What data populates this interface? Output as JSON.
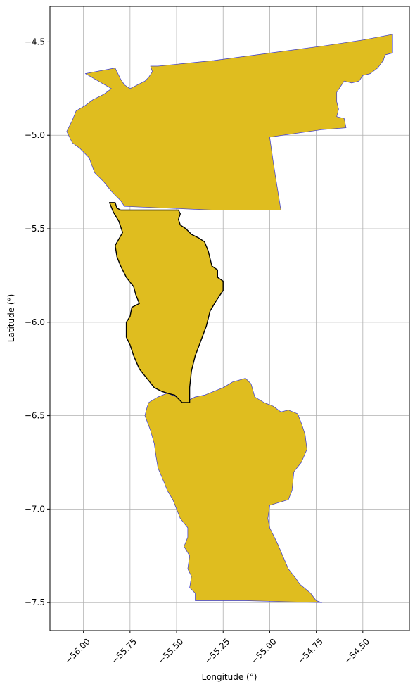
{
  "chart_data": {
    "type": "map",
    "title": "",
    "xlabel": "Longitude (°)",
    "ylabel": "Latitude (°)",
    "xlim": [
      -56.18,
      -54.25
    ],
    "ylim": [
      -7.65,
      -4.31
    ],
    "grid": true,
    "xticks": [
      -56.0,
      -55.75,
      -55.5,
      -55.25,
      -55.0,
      -54.75,
      -54.5
    ],
    "xtick_labels": [
      "−56.00",
      "−55.75",
      "−55.50",
      "−55.25",
      "−55.00",
      "−54.75",
      "−54.50"
    ],
    "yticks": [
      -4.5,
      -5.0,
      -5.5,
      -6.0,
      -6.5,
      -7.0,
      -7.5
    ],
    "ytick_labels": [
      "−4.5",
      "−5.0",
      "−5.5",
      "−6.0",
      "−6.5",
      "−7.0",
      "−7.5"
    ],
    "colors": {
      "fill": "#DFBD1F",
      "edge_blue": "#3B3BD0",
      "edge_highlight": "#000000",
      "grid": "#B0B0B0"
    },
    "regions": [
      {
        "id": "north",
        "highlight": false,
        "coords": [
          [
            -56.09,
            -4.98
          ],
          [
            -56.06,
            -4.92
          ],
          [
            -56.04,
            -4.87
          ],
          [
            -55.99,
            -4.84
          ],
          [
            -55.95,
            -4.81
          ],
          [
            -55.89,
            -4.78
          ],
          [
            -55.85,
            -4.75
          ],
          [
            -55.99,
            -4.67
          ],
          [
            -55.83,
            -4.64
          ],
          [
            -55.8,
            -4.7
          ],
          [
            -55.78,
            -4.73
          ],
          [
            -55.75,
            -4.75
          ],
          [
            -55.67,
            -4.71
          ],
          [
            -55.65,
            -4.69
          ],
          [
            -55.63,
            -4.66
          ],
          [
            -55.64,
            -4.63
          ],
          [
            -55.6,
            -4.63
          ],
          [
            -55.3,
            -4.6
          ],
          [
            -55.0,
            -4.56
          ],
          [
            -54.7,
            -4.52
          ],
          [
            -54.5,
            -4.49
          ],
          [
            -54.34,
            -4.46
          ],
          [
            -54.34,
            -4.56
          ],
          [
            -54.38,
            -4.57
          ],
          [
            -54.39,
            -4.6
          ],
          [
            -54.42,
            -4.64
          ],
          [
            -54.46,
            -4.67
          ],
          [
            -54.5,
            -4.68
          ],
          [
            -54.52,
            -4.71
          ],
          [
            -54.56,
            -4.72
          ],
          [
            -54.6,
            -4.71
          ],
          [
            -54.62,
            -4.74
          ],
          [
            -54.64,
            -4.77
          ],
          [
            -54.64,
            -4.82
          ],
          [
            -54.63,
            -4.86
          ],
          [
            -54.64,
            -4.9
          ],
          [
            -54.6,
            -4.91
          ],
          [
            -54.59,
            -4.96
          ],
          [
            -54.72,
            -4.97
          ],
          [
            -55.0,
            -5.01
          ],
          [
            -54.98,
            -5.15
          ],
          [
            -54.94,
            -5.4
          ],
          [
            -55.3,
            -5.4
          ],
          [
            -55.78,
            -5.38
          ],
          [
            -55.8,
            -5.35
          ],
          [
            -55.85,
            -5.3
          ],
          [
            -55.89,
            -5.25
          ],
          [
            -55.94,
            -5.2
          ],
          [
            -55.97,
            -5.12
          ],
          [
            -56.02,
            -5.07
          ],
          [
            -56.06,
            -5.04
          ]
        ]
      },
      {
        "id": "middle",
        "highlight": true,
        "coords": [
          [
            -55.86,
            -5.36
          ],
          [
            -55.83,
            -5.36
          ],
          [
            -55.82,
            -5.39
          ],
          [
            -55.8,
            -5.4
          ],
          [
            -55.49,
            -5.4
          ],
          [
            -55.48,
            -5.42
          ],
          [
            -55.49,
            -5.45
          ],
          [
            -55.48,
            -5.48
          ],
          [
            -55.45,
            -5.5
          ],
          [
            -55.42,
            -5.53
          ],
          [
            -55.38,
            -5.55
          ],
          [
            -55.35,
            -5.57
          ],
          [
            -55.33,
            -5.62
          ],
          [
            -55.32,
            -5.66
          ],
          [
            -55.31,
            -5.7
          ],
          [
            -55.28,
            -5.72
          ],
          [
            -55.28,
            -5.76
          ],
          [
            -55.25,
            -5.78
          ],
          [
            -55.25,
            -5.83
          ],
          [
            -55.27,
            -5.86
          ],
          [
            -55.29,
            -5.89
          ],
          [
            -55.32,
            -5.94
          ],
          [
            -55.34,
            -6.02
          ],
          [
            -55.37,
            -6.1
          ],
          [
            -55.4,
            -6.18
          ],
          [
            -55.42,
            -6.26
          ],
          [
            -55.43,
            -6.35
          ],
          [
            -55.43,
            -6.43
          ],
          [
            -55.47,
            -6.43
          ],
          [
            -55.51,
            -6.39
          ],
          [
            -55.55,
            -6.38
          ],
          [
            -55.58,
            -6.37
          ],
          [
            -55.62,
            -6.35
          ],
          [
            -55.66,
            -6.3
          ],
          [
            -55.7,
            -6.25
          ],
          [
            -55.73,
            -6.18
          ],
          [
            -55.75,
            -6.12
          ],
          [
            -55.77,
            -6.08
          ],
          [
            -55.77,
            -6.0
          ],
          [
            -55.75,
            -5.97
          ],
          [
            -55.74,
            -5.92
          ],
          [
            -55.7,
            -5.9
          ],
          [
            -55.72,
            -5.85
          ],
          [
            -55.73,
            -5.81
          ],
          [
            -55.77,
            -5.76
          ],
          [
            -55.8,
            -5.7
          ],
          [
            -55.82,
            -5.65
          ],
          [
            -55.83,
            -5.59
          ],
          [
            -55.79,
            -5.52
          ],
          [
            -55.81,
            -5.46
          ],
          [
            -55.84,
            -5.41
          ]
        ]
      },
      {
        "id": "south",
        "highlight": false,
        "coords": [
          [
            -55.65,
            -6.43
          ],
          [
            -55.6,
            -6.4
          ],
          [
            -55.55,
            -6.38
          ],
          [
            -55.5,
            -6.4
          ],
          [
            -55.46,
            -6.43
          ],
          [
            -55.4,
            -6.4
          ],
          [
            -55.35,
            -6.39
          ],
          [
            -55.25,
            -6.35
          ],
          [
            -55.2,
            -6.32
          ],
          [
            -55.13,
            -6.3
          ],
          [
            -55.1,
            -6.33
          ],
          [
            -55.08,
            -6.4
          ],
          [
            -55.03,
            -6.43
          ],
          [
            -54.98,
            -6.45
          ],
          [
            -54.94,
            -6.48
          ],
          [
            -54.9,
            -6.47
          ],
          [
            -54.85,
            -6.49
          ],
          [
            -54.83,
            -6.54
          ],
          [
            -54.81,
            -6.6
          ],
          [
            -54.8,
            -6.68
          ],
          [
            -54.83,
            -6.75
          ],
          [
            -54.87,
            -6.8
          ],
          [
            -54.88,
            -6.9
          ],
          [
            -54.9,
            -6.95
          ],
          [
            -55.0,
            -6.98
          ],
          [
            -55.01,
            -7.05
          ],
          [
            -55.0,
            -7.1
          ],
          [
            -54.96,
            -7.18
          ],
          [
            -54.93,
            -7.25
          ],
          [
            -54.9,
            -7.32
          ],
          [
            -54.86,
            -7.37
          ],
          [
            -54.84,
            -7.4
          ],
          [
            -54.78,
            -7.45
          ],
          [
            -54.75,
            -7.49
          ],
          [
            -54.72,
            -7.5
          ],
          [
            -55.13,
            -7.49
          ],
          [
            -55.4,
            -7.49
          ],
          [
            -55.4,
            -7.45
          ],
          [
            -55.43,
            -7.42
          ],
          [
            -55.42,
            -7.36
          ],
          [
            -55.44,
            -7.32
          ],
          [
            -55.43,
            -7.25
          ],
          [
            -55.46,
            -7.2
          ],
          [
            -55.44,
            -7.15
          ],
          [
            -55.44,
            -7.1
          ],
          [
            -55.48,
            -7.05
          ],
          [
            -55.5,
            -7.0
          ],
          [
            -55.52,
            -6.95
          ],
          [
            -55.55,
            -6.9
          ],
          [
            -55.57,
            -6.85
          ],
          [
            -55.6,
            -6.78
          ],
          [
            -55.61,
            -6.72
          ],
          [
            -55.62,
            -6.65
          ],
          [
            -55.64,
            -6.58
          ],
          [
            -55.67,
            -6.5
          ],
          [
            -55.66,
            -6.46
          ]
        ]
      }
    ]
  }
}
